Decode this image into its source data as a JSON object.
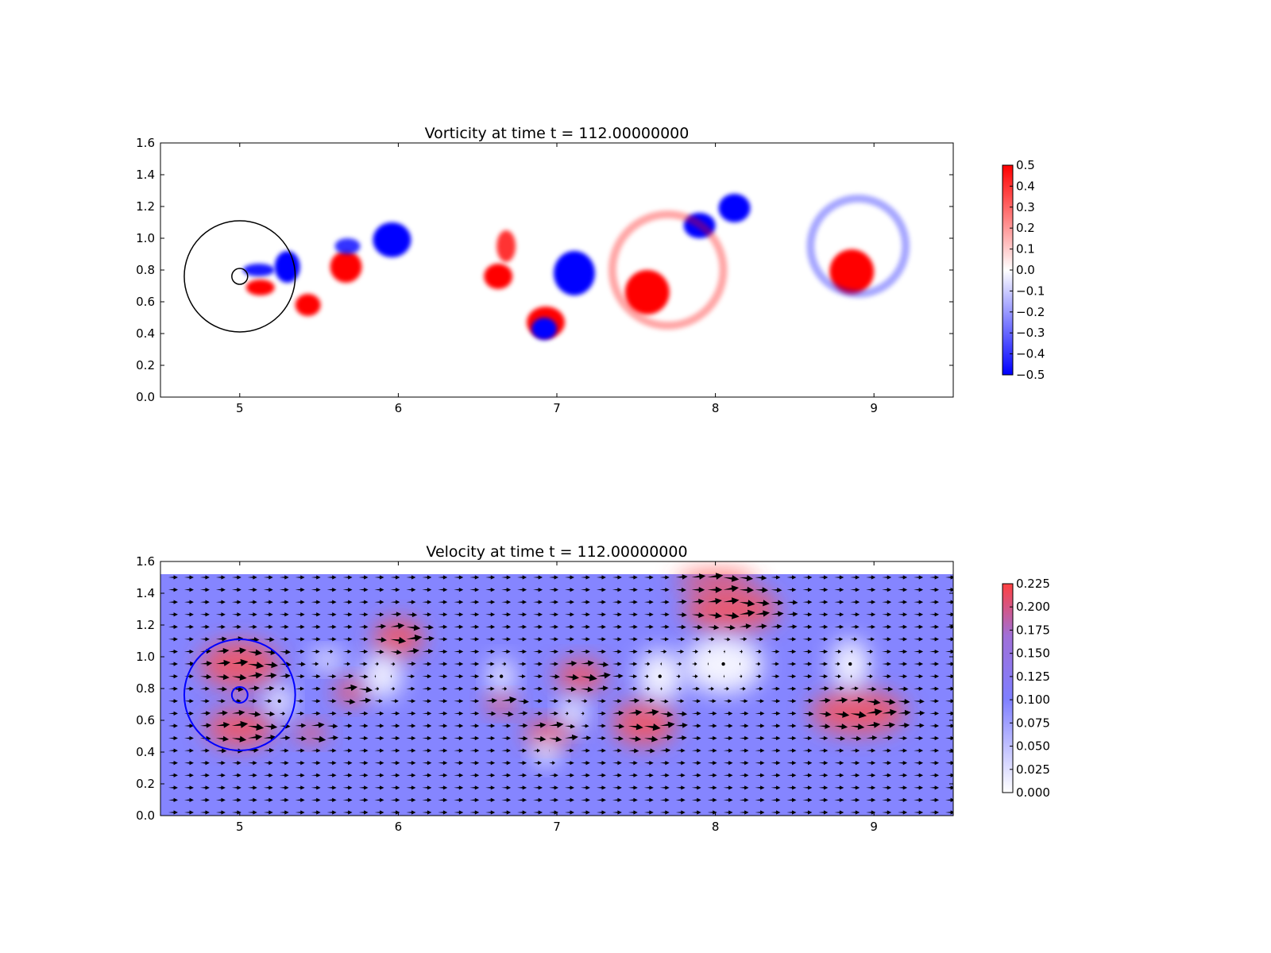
{
  "chart_data": [
    {
      "type": "heatmap",
      "title": "Vorticity at time t =    112.00000000",
      "xlabel": "",
      "ylabel": "",
      "xlim": [
        4.5,
        9.5
      ],
      "ylim": [
        0.0,
        1.6
      ],
      "xticks": [
        "5",
        "6",
        "7",
        "8",
        "9"
      ],
      "yticks": [
        "0.0",
        "0.2",
        "0.4",
        "0.6",
        "0.8",
        "1.0",
        "1.2",
        "1.4",
        "1.6"
      ],
      "colorbar": {
        "range": [
          -0.5,
          0.5
        ],
        "colors": [
          "#0000ff",
          "#ffffff",
          "#ff0000"
        ],
        "ticks": [
          "0.5",
          "0.4",
          "0.3",
          "0.2",
          "0.1",
          "0.0",
          "−0.1",
          "−0.2",
          "−0.3",
          "−0.4",
          "−0.5"
        ]
      },
      "circles": [
        {
          "cx": 5.0,
          "cy": 0.76,
          "r": 0.35,
          "color": "#000000"
        },
        {
          "cx": 5.0,
          "cy": 0.76,
          "r": 0.05,
          "color": "#000000"
        }
      ],
      "vortices": [
        {
          "x": 5.3,
          "y": 0.82,
          "rx": 0.08,
          "ry": 0.1,
          "value": -0.5
        },
        {
          "x": 5.12,
          "y": 0.8,
          "rx": 0.1,
          "ry": 0.04,
          "value": -0.45
        },
        {
          "x": 5.13,
          "y": 0.69,
          "rx": 0.09,
          "ry": 0.05,
          "value": 0.5
        },
        {
          "x": 5.43,
          "y": 0.58,
          "rx": 0.08,
          "ry": 0.07,
          "value": 0.5
        },
        {
          "x": 5.67,
          "y": 0.82,
          "rx": 0.1,
          "ry": 0.1,
          "value": 0.5
        },
        {
          "x": 5.68,
          "y": 0.95,
          "rx": 0.08,
          "ry": 0.05,
          "value": -0.4
        },
        {
          "x": 5.96,
          "y": 0.99,
          "rx": 0.12,
          "ry": 0.11,
          "value": -0.5
        },
        {
          "x": 6.63,
          "y": 0.76,
          "rx": 0.09,
          "ry": 0.08,
          "value": 0.5
        },
        {
          "x": 6.93,
          "y": 0.47,
          "rx": 0.12,
          "ry": 0.1,
          "value": 0.5
        },
        {
          "x": 6.92,
          "y": 0.43,
          "rx": 0.08,
          "ry": 0.07,
          "value": -0.5
        },
        {
          "x": 6.68,
          "y": 0.95,
          "rx": 0.06,
          "ry": 0.1,
          "value": 0.4
        },
        {
          "x": 7.11,
          "y": 0.78,
          "rx": 0.13,
          "ry": 0.14,
          "value": -0.5
        },
        {
          "x": 7.57,
          "y": 0.66,
          "rx": 0.14,
          "ry": 0.14,
          "value": 0.5
        },
        {
          "x": 7.9,
          "y": 1.08,
          "rx": 0.1,
          "ry": 0.08,
          "value": -0.5
        },
        {
          "x": 8.12,
          "y": 1.19,
          "rx": 0.1,
          "ry": 0.09,
          "value": -0.5
        },
        {
          "x": 8.86,
          "y": 0.79,
          "rx": 0.14,
          "ry": 0.14,
          "value": 0.5
        },
        {
          "x": 8.9,
          "y": 0.95,
          "rx": 0.3,
          "ry": 0.3,
          "value": -0.08
        },
        {
          "x": 7.7,
          "y": 0.8,
          "rx": 0.35,
          "ry": 0.35,
          "value": 0.08
        }
      ]
    },
    {
      "type": "heatmap",
      "title": "Velocity at time t =    112.00000000",
      "xlabel": "",
      "ylabel": "",
      "xlim": [
        4.5,
        9.5
      ],
      "ylim": [
        0.0,
        1.6
      ],
      "xticks": [
        "5",
        "6",
        "7",
        "8",
        "9"
      ],
      "yticks": [
        "0.0",
        "0.2",
        "0.4",
        "0.6",
        "0.8",
        "1.0",
        "1.2",
        "1.4",
        "1.6"
      ],
      "field_top": 1.52,
      "colorbar": {
        "range": [
          0.0,
          0.225
        ],
        "colors": [
          "#ffffff",
          "#7f7fff",
          "#ff4040"
        ],
        "ticks": [
          "0.225",
          "0.200",
          "0.175",
          "0.150",
          "0.125",
          "0.100",
          "0.075",
          "0.050",
          "0.025",
          "0.000"
        ]
      },
      "background_speed": 0.1,
      "circles": [
        {
          "cx": 5.0,
          "cy": 0.76,
          "r": 0.35,
          "color": "#0000ff"
        },
        {
          "cx": 5.0,
          "cy": 0.76,
          "r": 0.05,
          "color": "#0000ff"
        }
      ],
      "fast_regions": [
        {
          "x": 5.0,
          "y": 0.95,
          "rx": 0.25,
          "ry": 0.15,
          "speed": 0.2
        },
        {
          "x": 5.0,
          "y": 0.55,
          "rx": 0.22,
          "ry": 0.12,
          "speed": 0.2
        },
        {
          "x": 5.45,
          "y": 0.52,
          "rx": 0.1,
          "ry": 0.06,
          "speed": 0.22
        },
        {
          "x": 5.7,
          "y": 0.78,
          "rx": 0.1,
          "ry": 0.08,
          "speed": 0.22
        },
        {
          "x": 6.0,
          "y": 1.12,
          "rx": 0.16,
          "ry": 0.12,
          "speed": 0.22
        },
        {
          "x": 6.65,
          "y": 0.7,
          "rx": 0.1,
          "ry": 0.06,
          "speed": 0.22
        },
        {
          "x": 6.95,
          "y": 0.52,
          "rx": 0.16,
          "ry": 0.08,
          "speed": 0.22
        },
        {
          "x": 7.15,
          "y": 0.88,
          "rx": 0.16,
          "ry": 0.1,
          "speed": 0.22
        },
        {
          "x": 7.55,
          "y": 0.58,
          "rx": 0.2,
          "ry": 0.14,
          "speed": 0.22
        },
        {
          "x": 8.1,
          "y": 1.3,
          "rx": 0.3,
          "ry": 0.14,
          "speed": 0.22
        },
        {
          "x": 8.0,
          "y": 1.48,
          "rx": 0.25,
          "ry": 0.06,
          "speed": 0.18
        },
        {
          "x": 8.9,
          "y": 0.65,
          "rx": 0.3,
          "ry": 0.14,
          "speed": 0.22
        }
      ],
      "slow_regions": [
        {
          "x": 5.25,
          "y": 0.72,
          "rx": 0.08,
          "ry": 0.1
        },
        {
          "x": 5.9,
          "y": 0.88,
          "rx": 0.12,
          "ry": 0.14
        },
        {
          "x": 5.55,
          "y": 0.98,
          "rx": 0.1,
          "ry": 0.06
        },
        {
          "x": 6.65,
          "y": 0.88,
          "rx": 0.08,
          "ry": 0.1
        },
        {
          "x": 7.1,
          "y": 0.65,
          "rx": 0.08,
          "ry": 0.1
        },
        {
          "x": 6.93,
          "y": 0.4,
          "rx": 0.08,
          "ry": 0.08
        },
        {
          "x": 7.65,
          "y": 0.88,
          "rx": 0.14,
          "ry": 0.16
        },
        {
          "x": 8.05,
          "y": 0.95,
          "rx": 0.25,
          "ry": 0.18
        },
        {
          "x": 8.85,
          "y": 0.95,
          "rx": 0.12,
          "ry": 0.16
        }
      ]
    }
  ]
}
